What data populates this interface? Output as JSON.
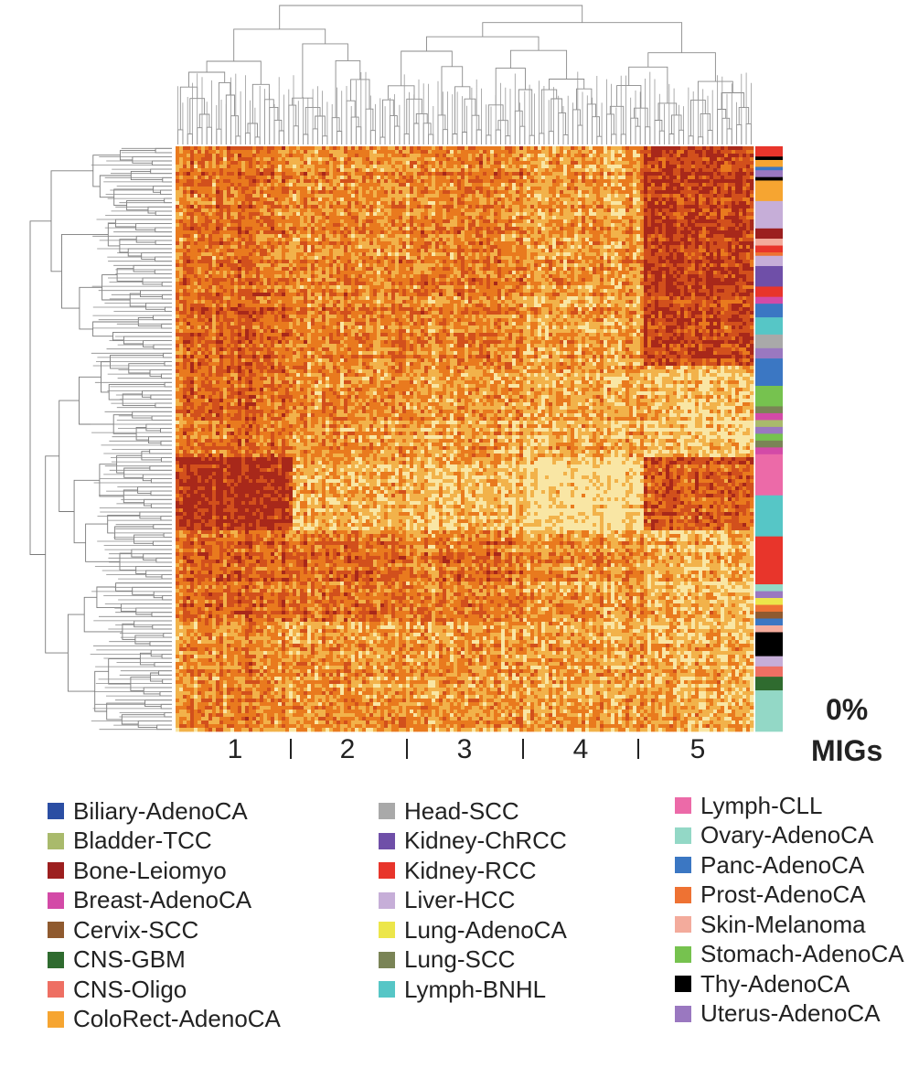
{
  "chart_data": {
    "type": "heatmap",
    "title": "",
    "clusters": [
      "1",
      "2",
      "3",
      "4",
      "5"
    ],
    "side_label": {
      "line1": "0%",
      "line2": "MIGs"
    },
    "colorscale": [
      "#f9e6a4",
      "#f2b24a",
      "#e97a1e",
      "#d2501c",
      "#a8281a"
    ],
    "legend": [
      {
        "label": "Biliary-AdenoCA",
        "color": "#2b4ea3"
      },
      {
        "label": "Bladder-TCC",
        "color": "#a9ba6c"
      },
      {
        "label": "Bone-Leiomyo",
        "color": "#9c1f1f"
      },
      {
        "label": "Breast-AdenoCA",
        "color": "#d34aa7"
      },
      {
        "label": "Cervix-SCC",
        "color": "#8f5a2f"
      },
      {
        "label": "CNS-GBM",
        "color": "#2f6b2f"
      },
      {
        "label": "CNS-Oligo",
        "color": "#ee6f63"
      },
      {
        "label": "ColoRect-AdenoCA",
        "color": "#f6a531"
      },
      {
        "label": "Head-SCC",
        "color": "#a9a9a9"
      },
      {
        "label": "Kidney-ChRCC",
        "color": "#6f4fa8"
      },
      {
        "label": "Kidney-RCC",
        "color": "#e8352b"
      },
      {
        "label": "Liver-HCC",
        "color": "#c6aed8"
      },
      {
        "label": "Lung-AdenoCA",
        "color": "#ece64a"
      },
      {
        "label": "Lung-SCC",
        "color": "#7a8456"
      },
      {
        "label": "Lymph-BNHL",
        "color": "#56c6c6"
      },
      {
        "label": "Lymph-CLL",
        "color": "#ec6aa8"
      },
      {
        "label": "Ovary-AdenoCA",
        "color": "#93d8c6"
      },
      {
        "label": "Panc-AdenoCA",
        "color": "#3b77c3"
      },
      {
        "label": "Prost-AdenoCA",
        "color": "#ee7233"
      },
      {
        "label": "Skin-Melanoma",
        "color": "#f3ab9c"
      },
      {
        "label": "Stomach-AdenoCA",
        "color": "#76c24f"
      },
      {
        "label": "Thy-AdenoCA",
        "color": "#000000"
      },
      {
        "label": "Uterus-AdenoCA",
        "color": "#9a78c0"
      }
    ],
    "annotation_track": [
      {
        "type": "Kidney-RCC",
        "rows": 3
      },
      {
        "type": "Thy-AdenoCA",
        "rows": 1
      },
      {
        "type": "ColoRect-AdenoCA",
        "rows": 2
      },
      {
        "type": "Panc-AdenoCA",
        "rows": 1
      },
      {
        "type": "Uterus-AdenoCA",
        "rows": 2
      },
      {
        "type": "Thy-AdenoCA",
        "rows": 1
      },
      {
        "type": "ColoRect-AdenoCA",
        "rows": 6
      },
      {
        "type": "Liver-HCC",
        "rows": 8
      },
      {
        "type": "Bone-Leiomyo",
        "rows": 3
      },
      {
        "type": "Skin-Melanoma",
        "rows": 2
      },
      {
        "type": "Kidney-RCC",
        "rows": 2
      },
      {
        "type": "Prost-AdenoCA",
        "rows": 1
      },
      {
        "type": "Liver-HCC",
        "rows": 3
      },
      {
        "type": "Kidney-ChRCC",
        "rows": 6
      },
      {
        "type": "Kidney-RCC",
        "rows": 3
      },
      {
        "type": "Breast-AdenoCA",
        "rows": 2
      },
      {
        "type": "Panc-AdenoCA",
        "rows": 4
      },
      {
        "type": "Lymph-BNHL",
        "rows": 5
      },
      {
        "type": "Head-SCC",
        "rows": 4
      },
      {
        "type": "Uterus-AdenoCA",
        "rows": 3
      },
      {
        "type": "Panc-AdenoCA",
        "rows": 8
      },
      {
        "type": "Stomach-AdenoCA",
        "rows": 6
      },
      {
        "type": "Lung-SCC",
        "rows": 2
      },
      {
        "type": "Breast-AdenoCA",
        "rows": 2
      },
      {
        "type": "Bladder-TCC",
        "rows": 2
      },
      {
        "type": "Uterus-AdenoCA",
        "rows": 2
      },
      {
        "type": "Stomach-AdenoCA",
        "rows": 2
      },
      {
        "type": "Lung-SCC",
        "rows": 2
      },
      {
        "type": "Breast-AdenoCA",
        "rows": 2
      },
      {
        "type": "Lymph-CLL",
        "rows": 12
      },
      {
        "type": "Lymph-BNHL",
        "rows": 12
      },
      {
        "type": "Kidney-RCC",
        "rows": 14
      },
      {
        "type": "Ovary-AdenoCA",
        "rows": 2
      },
      {
        "type": "Uterus-AdenoCA",
        "rows": 2
      },
      {
        "type": "Lung-AdenoCA",
        "rows": 2
      },
      {
        "type": "Prost-AdenoCA",
        "rows": 2
      },
      {
        "type": "Cervix-SCC",
        "rows": 2
      },
      {
        "type": "Panc-AdenoCA",
        "rows": 2
      },
      {
        "type": "Skin-Melanoma",
        "rows": 2
      },
      {
        "type": "Thy-AdenoCA",
        "rows": 7
      },
      {
        "type": "Liver-HCC",
        "rows": 3
      },
      {
        "type": "CNS-Oligo",
        "rows": 3
      },
      {
        "type": "CNS-GBM",
        "rows": 4
      },
      {
        "type": "Ovary-AdenoCA",
        "rows": 12
      }
    ]
  }
}
